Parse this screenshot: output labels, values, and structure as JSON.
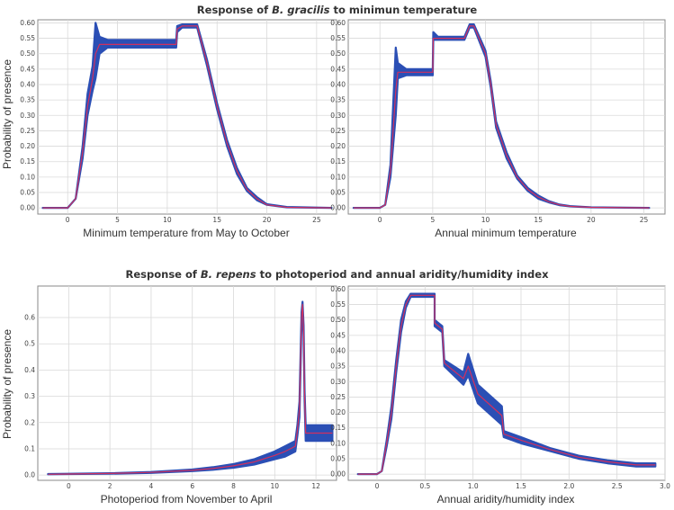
{
  "titles": {
    "top": {
      "prefix": "Response of ",
      "species": "B. gracilis",
      "suffix": " to minimun temperature"
    },
    "bottom": {
      "prefix": "Response of ",
      "species": "B. repens",
      "suffix": " to photoperiod and annual aridity/humidity index"
    }
  },
  "ylabel": "Probability of presence",
  "colors": {
    "band": "#2b4fb5",
    "line": "#d0305f",
    "grid": "#d9d9d9",
    "frame": "#888888"
  },
  "chart_data": [
    {
      "id": "p1",
      "type": "line",
      "xlabel": "Minimum temperature from May to October",
      "xlim": [
        -3,
        27
      ],
      "ylim": [
        -0.02,
        0.61
      ],
      "xticks": [
        0,
        5,
        10,
        15,
        20,
        25
      ],
      "yticks": [
        0.0,
        0.05,
        0.1,
        0.15,
        0.2,
        0.25,
        0.3,
        0.35,
        0.4,
        0.45,
        0.5,
        0.55,
        0.6
      ],
      "ytick_labels": [
        "0.00",
        "0.05",
        "0.10",
        "0.15",
        "0.20",
        "0.25",
        "0.30",
        "0.35",
        "0.40",
        "0.45",
        "0.50",
        "0.55",
        "0.60"
      ],
      "series": [
        {
          "x": [
            -2.5,
            0,
            0.8,
            1.5,
            2.0,
            2.5,
            2.8,
            3.2,
            4.0,
            7.0,
            10.0,
            10.9,
            11.0,
            11.5,
            13.0,
            14.0,
            15.0,
            16.0,
            17.0,
            18.0,
            19.0,
            20.0,
            22.0,
            26.5
          ],
          "y": [
            0.0,
            0.0,
            0.03,
            0.18,
            0.33,
            0.42,
            0.5,
            0.53,
            0.53,
            0.53,
            0.53,
            0.53,
            0.58,
            0.59,
            0.59,
            0.47,
            0.33,
            0.21,
            0.12,
            0.06,
            0.03,
            0.01,
            0.002,
            0.0
          ],
          "lower": [
            0.0,
            0.0,
            0.03,
            0.16,
            0.3,
            0.38,
            0.42,
            0.5,
            0.52,
            0.52,
            0.52,
            0.52,
            0.57,
            0.585,
            0.585,
            0.46,
            0.32,
            0.2,
            0.11,
            0.055,
            0.025,
            0.01,
            0.002,
            0.0
          ],
          "upper": [
            0.0,
            0.0,
            0.03,
            0.2,
            0.37,
            0.46,
            0.6,
            0.555,
            0.545,
            0.545,
            0.545,
            0.545,
            0.59,
            0.595,
            0.595,
            0.48,
            0.34,
            0.22,
            0.13,
            0.065,
            0.035,
            0.012,
            0.003,
            0.0
          ]
        }
      ]
    },
    {
      "id": "p2",
      "type": "line",
      "xlabel": "Annual minimum temperature",
      "xlim": [
        -3,
        27
      ],
      "ylim": [
        -0.02,
        0.61
      ],
      "xticks": [
        0,
        5,
        10,
        15,
        20,
        25
      ],
      "yticks": [
        0.0,
        0.05,
        0.1,
        0.15,
        0.2,
        0.25,
        0.3,
        0.35,
        0.4,
        0.45,
        0.5,
        0.55,
        0.6
      ],
      "ytick_labels": [
        "0.00",
        "0.05",
        "0.10",
        "0.15",
        "0.20",
        "0.25",
        "0.30",
        "0.35",
        "0.40",
        "0.45",
        "0.50",
        "0.55",
        "0.60"
      ],
      "series": [
        {
          "x": [
            -2.5,
            0,
            0.5,
            1.0,
            1.5,
            1.7,
            2.5,
            5.0,
            5.05,
            5.5,
            8.0,
            8.5,
            8.9,
            10.0,
            10.5,
            11.0,
            12.0,
            13.0,
            14.0,
            15.0,
            16.0,
            17.0,
            18.0,
            20.0,
            25.5
          ],
          "y": [
            0.0,
            0.0,
            0.01,
            0.12,
            0.38,
            0.44,
            0.44,
            0.44,
            0.55,
            0.55,
            0.55,
            0.59,
            0.59,
            0.5,
            0.4,
            0.27,
            0.17,
            0.1,
            0.06,
            0.035,
            0.02,
            0.01,
            0.005,
            0.002,
            0.0
          ],
          "lower": [
            0.0,
            0.0,
            0.01,
            0.1,
            0.3,
            0.42,
            0.43,
            0.43,
            0.545,
            0.545,
            0.545,
            0.585,
            0.585,
            0.49,
            0.39,
            0.26,
            0.16,
            0.095,
            0.055,
            0.03,
            0.018,
            0.009,
            0.005,
            0.002,
            0.0
          ],
          "upper": [
            0.0,
            0.0,
            0.01,
            0.14,
            0.52,
            0.47,
            0.45,
            0.45,
            0.57,
            0.555,
            0.555,
            0.595,
            0.595,
            0.51,
            0.41,
            0.28,
            0.18,
            0.105,
            0.065,
            0.04,
            0.022,
            0.011,
            0.006,
            0.002,
            0.0
          ]
        }
      ]
    },
    {
      "id": "p3",
      "type": "line",
      "xlabel": "Photoperiod from November to April",
      "xlim": [
        -1.5,
        13
      ],
      "ylim": [
        -0.02,
        0.72
      ],
      "xticks": [
        0,
        2,
        4,
        6,
        8,
        10,
        12
      ],
      "yticks": [
        0.0,
        0.1,
        0.2,
        0.3,
        0.4,
        0.5,
        0.6
      ],
      "ytick_labels": [
        "0.0",
        "0.1",
        "0.2",
        "0.3",
        "0.4",
        "0.5",
        "0.6"
      ],
      "series": [
        {
          "x": [
            -1.0,
            0,
            2,
            4,
            6,
            7,
            8,
            9,
            10,
            10.5,
            11.0,
            11.1,
            11.2,
            11.3,
            11.35,
            11.4,
            11.45,
            11.5,
            11.55,
            12.8
          ],
          "y": [
            0.003,
            0.004,
            0.006,
            0.01,
            0.018,
            0.025,
            0.035,
            0.05,
            0.075,
            0.09,
            0.11,
            0.17,
            0.25,
            0.6,
            0.65,
            0.55,
            0.3,
            0.16,
            0.16,
            0.16
          ],
          "lower": [
            0.003,
            0.004,
            0.005,
            0.008,
            0.015,
            0.02,
            0.028,
            0.04,
            0.06,
            0.07,
            0.09,
            0.15,
            0.22,
            0.58,
            0.64,
            0.53,
            0.28,
            0.13,
            0.13,
            0.13
          ],
          "upper": [
            0.004,
            0.005,
            0.007,
            0.012,
            0.021,
            0.03,
            0.042,
            0.06,
            0.09,
            0.11,
            0.13,
            0.19,
            0.28,
            0.62,
            0.66,
            0.57,
            0.32,
            0.19,
            0.19,
            0.19
          ]
        }
      ]
    },
    {
      "id": "p4",
      "type": "line",
      "xlabel": "Annual aridity/humidity index",
      "xlim": [
        -0.3,
        3.0
      ],
      "ylim": [
        -0.02,
        0.61
      ],
      "xticks": [
        0,
        0.5,
        1.0,
        1.5,
        2.0,
        2.5,
        3.0
      ],
      "xtick_labels": [
        "0",
        "0.5",
        "1.0",
        "1.5",
        "2.0",
        "2.5",
        "3.0"
      ],
      "yticks": [
        0.0,
        0.05,
        0.1,
        0.15,
        0.2,
        0.25,
        0.3,
        0.35,
        0.4,
        0.45,
        0.5,
        0.55,
        0.6
      ],
      "ytick_labels": [
        "0.00",
        "0.05",
        "0.10",
        "0.15",
        "0.20",
        "0.25",
        "0.30",
        "0.35",
        "0.40",
        "0.45",
        "0.50",
        "0.55",
        "0.60"
      ],
      "series": [
        {
          "x": [
            -0.2,
            0.0,
            0.05,
            0.1,
            0.15,
            0.2,
            0.25,
            0.3,
            0.35,
            0.6,
            0.6001,
            0.68,
            0.7,
            0.9,
            0.95,
            1.05,
            1.3,
            1.32,
            1.5,
            1.8,
            2.1,
            2.4,
            2.7,
            2.9
          ],
          "y": [
            0.0,
            0.0,
            0.01,
            0.1,
            0.2,
            0.35,
            0.48,
            0.55,
            0.58,
            0.58,
            0.49,
            0.47,
            0.36,
            0.31,
            0.35,
            0.26,
            0.19,
            0.13,
            0.11,
            0.08,
            0.055,
            0.04,
            0.03,
            0.03
          ],
          "lower": [
            0.0,
            0.0,
            0.01,
            0.09,
            0.18,
            0.33,
            0.46,
            0.54,
            0.575,
            0.575,
            0.48,
            0.46,
            0.35,
            0.29,
            0.32,
            0.23,
            0.16,
            0.12,
            0.1,
            0.075,
            0.05,
            0.035,
            0.025,
            0.025
          ],
          "upper": [
            0.0,
            0.0,
            0.01,
            0.11,
            0.22,
            0.37,
            0.5,
            0.56,
            0.585,
            0.585,
            0.5,
            0.48,
            0.37,
            0.33,
            0.39,
            0.29,
            0.22,
            0.14,
            0.12,
            0.085,
            0.06,
            0.045,
            0.035,
            0.035
          ]
        }
      ]
    }
  ]
}
